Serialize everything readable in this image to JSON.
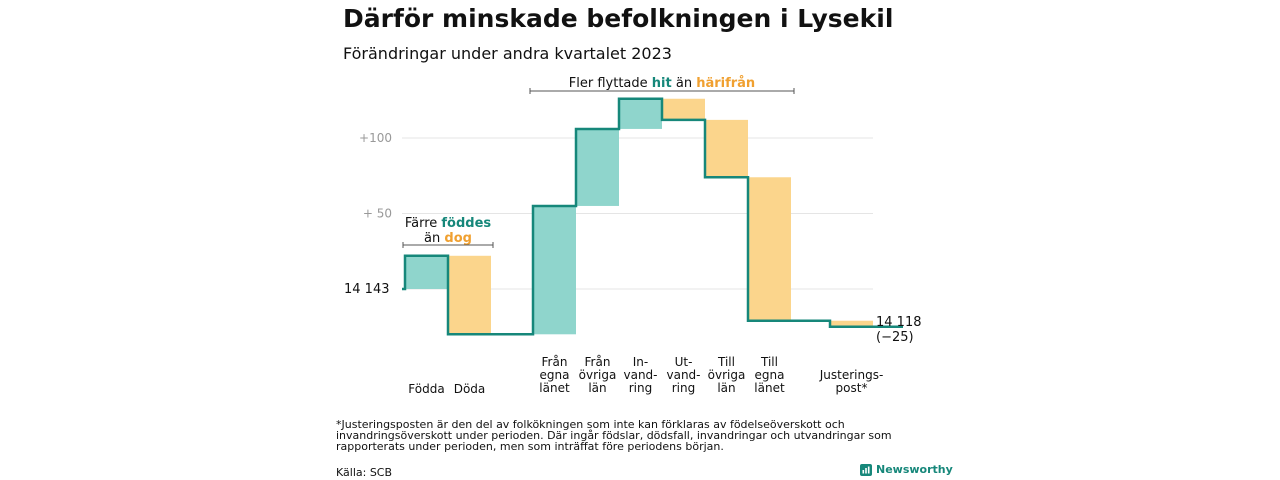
{
  "title": "Därför minskade befolkningen i Lysekil",
  "subtitle": "Förändringar under andra kvartalet 2023",
  "footnote": "*Justeringsposten är den del av folkökningen som inte kan förklaras av födelseöverskott och invandringsöverskott under perioden. Där ingår födslar, dödsfall, invandringar och utvandringar som rapporterats under perioden, men som inträffat före periodens början.",
  "source": "Källa: SCB",
  "brand": "Newsworthy",
  "colors": {
    "increase": "#8fd5cc",
    "decrease": "#fbd58c",
    "line": "#16877a",
    "hit": "#16877a",
    "harifran": "#f0a030",
    "grid": "#e5e5e5"
  },
  "chart_data": {
    "type": "waterfall",
    "start_value": 14143,
    "start_label": "14  143",
    "end_value": 14118,
    "end_label_line1": "14 118",
    "end_label_line2": "(−25)",
    "steps": [
      {
        "label": [
          "Födda"
        ],
        "change": 22,
        "kind": "increase"
      },
      {
        "label": [
          "Döda"
        ],
        "change": -52,
        "kind": "decrease"
      },
      {
        "label": [
          "Från",
          "egna",
          "länet"
        ],
        "change": 85,
        "kind": "increase"
      },
      {
        "label": [
          "Från",
          "övriga",
          "län"
        ],
        "change": 51,
        "kind": "increase"
      },
      {
        "label": [
          "In-",
          "vand-",
          "ring"
        ],
        "change": 20,
        "kind": "increase"
      },
      {
        "label": [
          "Ut-",
          "vand-",
          "ring"
        ],
        "change": -14,
        "kind": "decrease"
      },
      {
        "label": [
          "Till",
          "övriga",
          "län"
        ],
        "change": -38,
        "kind": "decrease"
      },
      {
        "label": [
          "Till",
          "egna",
          "länet"
        ],
        "change": -95,
        "kind": "decrease"
      },
      {
        "label": [
          "Justerings-",
          "post*"
        ],
        "change": -4,
        "kind": "decrease"
      }
    ],
    "y_ticks": [
      {
        "value": 50,
        "label": "+  50"
      },
      {
        "value": 100,
        "label": "+100"
      }
    ],
    "grid": true,
    "annotations": [
      {
        "from_step": 0,
        "to_step": 1,
        "parts": [
          {
            "text": "Färre ",
            "role": "plain"
          },
          {
            "text": "föddes",
            "role": "hit"
          },
          {
            "newline": true
          },
          {
            "text": "än ",
            "role": "plain"
          },
          {
            "text": "dog",
            "role": "harifran"
          }
        ]
      },
      {
        "from_step": 2,
        "to_step": 7,
        "parts": [
          {
            "text": "Fler flyttade ",
            "role": "plain"
          },
          {
            "text": "hit",
            "role": "hit"
          },
          {
            "text": " än ",
            "role": "plain"
          },
          {
            "text": "härifrån",
            "role": "harifran"
          }
        ]
      }
    ]
  }
}
